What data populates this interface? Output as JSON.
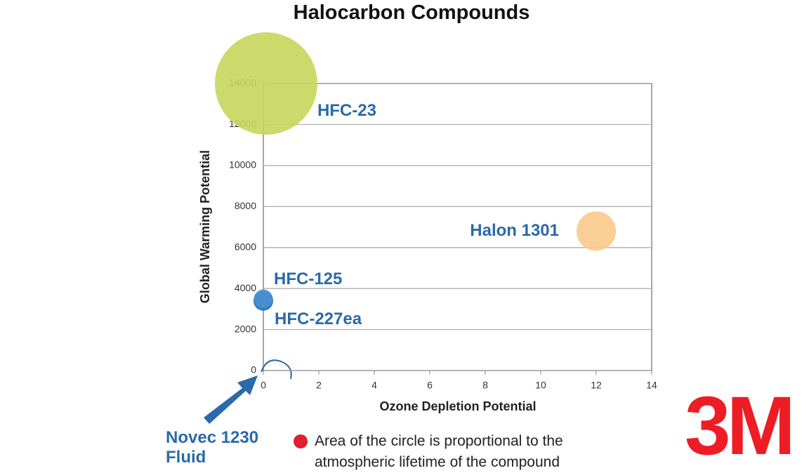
{
  "chart_data": {
    "type": "bubble",
    "title": "Halocarbon Compounds",
    "x_label": "Ozone Depletion Potential",
    "y_label": "Global Warming Potential",
    "xlim": [
      0,
      14
    ],
    "xticks": [
      0,
      2,
      4,
      6,
      8,
      10,
      12,
      14
    ],
    "ylim": [
      0,
      14000
    ],
    "yticks": [
      0,
      2000,
      4000,
      6000,
      8000,
      10000,
      12000,
      14000
    ],
    "grid": true,
    "series": [
      {
        "name": "HFC-23",
        "color": "#c5d65a",
        "x": [
          0.1
        ],
        "values": [
          14000
        ],
        "sizes": [
          270
        ]
      },
      {
        "name": "Halon 1301",
        "color": "#f9c98a",
        "x": [
          12
        ],
        "values": [
          6800
        ],
        "sizes": [
          40
        ]
      },
      {
        "name": "HFC-125",
        "color": "#1d6fb8",
        "x": [
          0
        ],
        "values": [
          3400
        ],
        "sizes": [
          10
        ]
      },
      {
        "name": "HFC-227ea",
        "color": "#4a90d0",
        "x": [
          0
        ],
        "values": [
          3500
        ],
        "sizes": [
          9
        ]
      },
      {
        "name": "Novec 1230 Fluid",
        "color": "#1d6fb8",
        "x": [
          0
        ],
        "values": [
          1
        ],
        "sizes": [
          0.01
        ]
      }
    ],
    "note": "Area of the circle is proportional to the atmospheric lifetime of the compound",
    "logo": "3M"
  }
}
